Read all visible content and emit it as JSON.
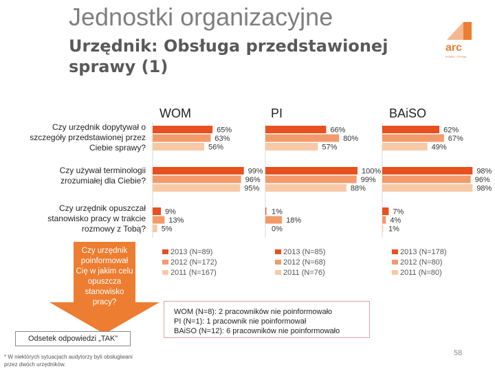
{
  "header": {
    "title": "Jednostki organizacyjne",
    "subtitle": "Urzędnik: Obsługa przedstawionej sprawy (1)"
  },
  "logo": {
    "text": "arc",
    "subtext": "RYNEK I OPINIA"
  },
  "colors": {
    "y2013": "#e8501f",
    "y2012": "#f39a6b",
    "y2011": "#f8c9a6",
    "accent": "#ed7d31"
  },
  "chart_data": {
    "type": "bar",
    "groups": [
      "WOM",
      "PI",
      "BAiSO"
    ],
    "categories": [
      "Czy urzędnik dopytywał o szczegóły przedstawionej przez Ciebie sprawy?",
      "Czy używał terminologii zrozumiałej dla Ciebie?",
      "Czy urzędnik opuszczał stanowisko pracy w trakcie rozmowy z Tobą?"
    ],
    "series": [
      {
        "name": "2013",
        "values": {
          "WOM": [
            65,
            99,
            9
          ],
          "PI": [
            66,
            100,
            1
          ],
          "BAiSO": [
            62,
            98,
            7
          ]
        }
      },
      {
        "name": "2012",
        "values": {
          "WOM": [
            63,
            96,
            13
          ],
          "PI": [
            80,
            99,
            18
          ],
          "BAiSO": [
            67,
            96,
            4
          ]
        }
      },
      {
        "name": "2011",
        "values": {
          "WOM": [
            56,
            95,
            5
          ],
          "PI": [
            57,
            88,
            0
          ],
          "BAiSO": [
            49,
            98,
            1
          ]
        }
      }
    ],
    "value_format": "%",
    "xlim": [
      0,
      100
    ],
    "legends": {
      "WOM": [
        "2013 (N=89)",
        "2012 (N=172)",
        "2011 (N=167)"
      ],
      "PI": [
        "2013 (N=85)",
        "2012 (N=68)",
        "2011 (N=76)"
      ],
      "BAiSO": [
        "2013 (N=178)",
        "2012 (N=80)",
        "2011 (N=80)"
      ]
    }
  },
  "arrow": {
    "question": "Czy urzędnik poinformował Cię w jakim celu opuszcza stanowisko pracy?",
    "caption": "Odsetek odpowiedzi „TAK”"
  },
  "note": {
    "lines": [
      "WOM (N=8): 2 pracowników nie poinformowało",
      "PI (N=1): 1 pracownik nie poinformował",
      "BAiSO (N=12): 6 pracowników nie poinformowało"
    ]
  },
  "footnote": "* W niektórych sytuacjach audytorzy byli obsługiwani przez dwóch urzędników.",
  "page_number": "58"
}
